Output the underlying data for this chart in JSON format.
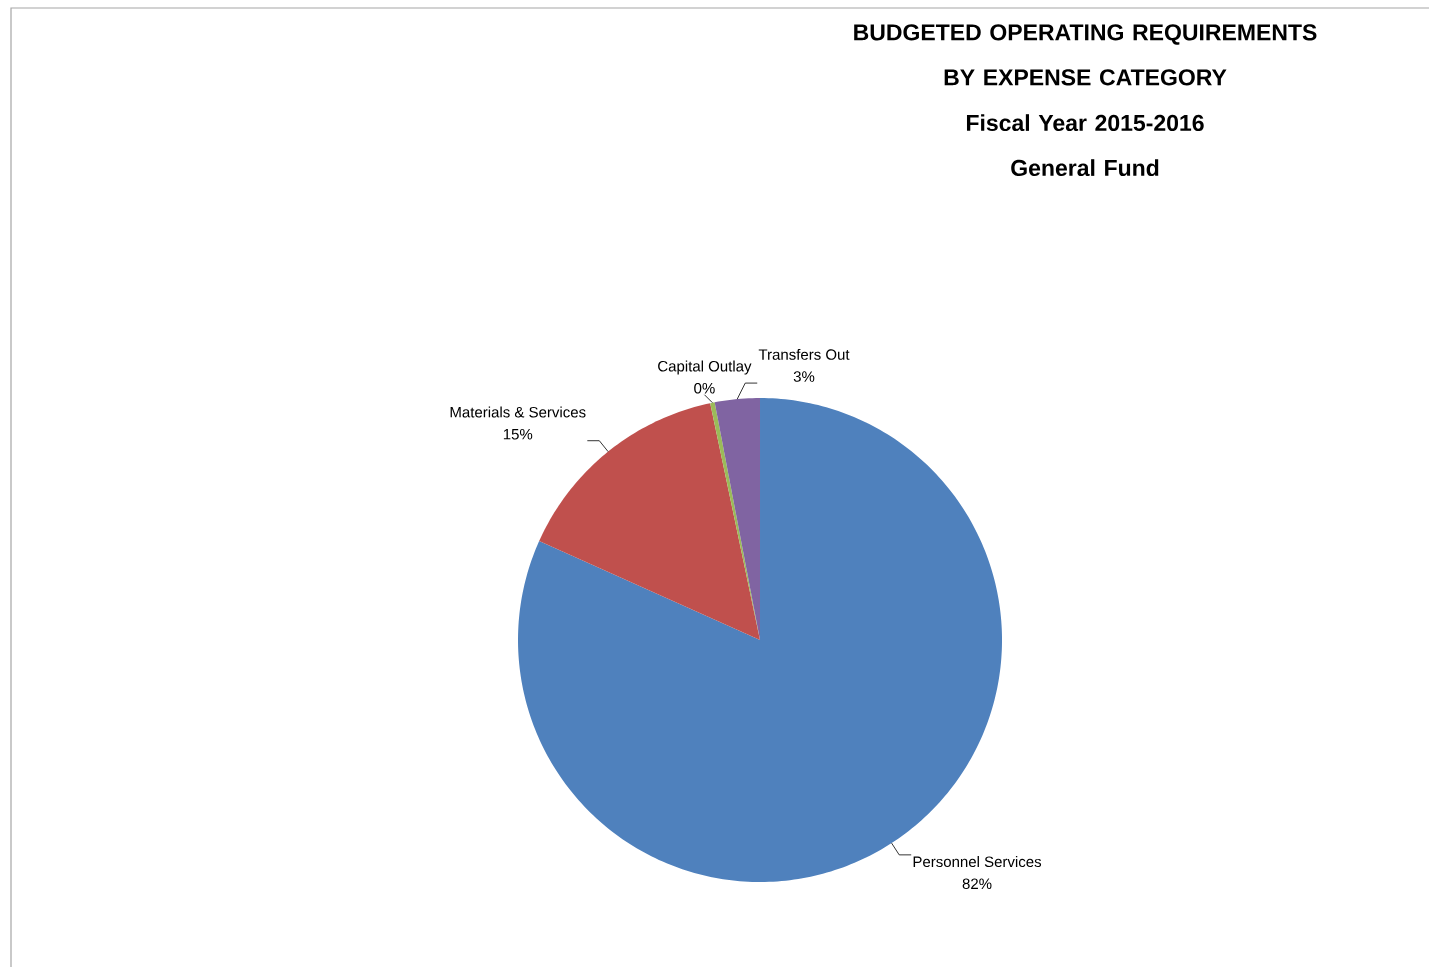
{
  "chart_data": {
    "type": "pie",
    "title": "BUDGETED OPERATING REQUIREMENTS BY EXPENSE CATEGORY",
    "subtitle": "Fiscal Year 2015-2016 General Fund",
    "categories": [
      "Personnel Services",
      "Materials & Services",
      "Capital Outlay",
      "Transfers Out"
    ],
    "values": [
      81.7,
      15.0,
      0.3,
      3.0
    ],
    "value_labels": [
      "82%",
      "15%",
      "0%",
      "3%"
    ],
    "colors": [
      "#4f81bd",
      "#c0504d",
      "#9bbb59",
      "#8064a2"
    ]
  }
}
